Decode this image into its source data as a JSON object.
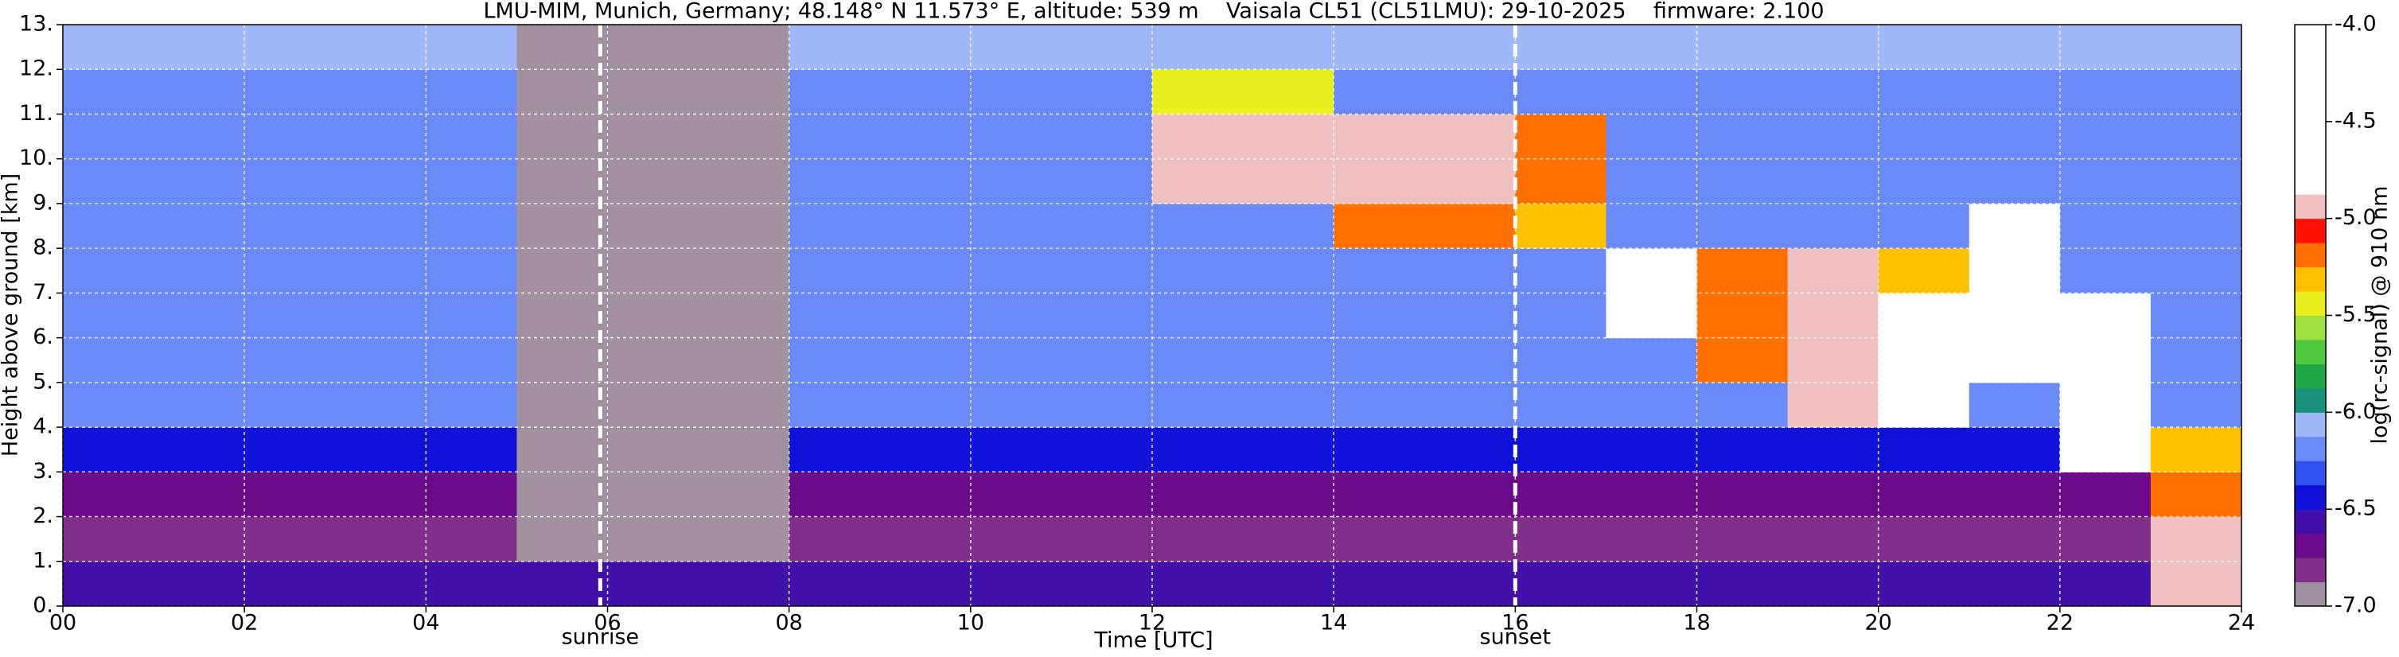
{
  "chart_data": {
    "type": "heatmap",
    "title": "LMU-MIM, Munich, Germany; 48.148° N 11.573° E, altitude: 539 m    Vaisala CL51 (CL51LMU): 29-10-2025    firmware: 2.100",
    "x_label": "Time [UTC]",
    "y_label": "Height above ground [km]",
    "colorbar_label": "log(rc-signal) @ 910 nm",
    "xlim": [
      0,
      24
    ],
    "ylim": [
      0,
      13
    ],
    "zlim": [
      -7,
      -4
    ],
    "xticks": [
      {
        "value": 0,
        "label": "00"
      },
      {
        "value": 2,
        "label": "02"
      },
      {
        "value": 4,
        "label": "04"
      },
      {
        "value": 6,
        "label": "06"
      },
      {
        "value": 8,
        "label": "08"
      },
      10,
      12,
      14,
      16,
      18,
      20,
      22,
      24
    ],
    "yticks": [
      {
        "value": 0,
        "label": "0."
      },
      {
        "value": 1,
        "label": "1."
      },
      {
        "value": 2,
        "label": "2."
      },
      {
        "value": 3,
        "label": "3."
      },
      {
        "value": 4,
        "label": "4."
      },
      {
        "value": 5,
        "label": "5."
      },
      {
        "value": 6,
        "label": "6."
      },
      {
        "value": 7,
        "label": "7."
      },
      {
        "value": 8,
        "label": "8."
      },
      {
        "value": 9,
        "label": "9."
      },
      {
        "value": 10,
        "label": "10."
      },
      {
        "value": 11,
        "label": "11."
      },
      {
        "value": 12,
        "label": "12."
      },
      {
        "value": 13,
        "label": "13."
      }
    ],
    "zticks": [
      {
        "value": -4,
        "label": "-4.0"
      },
      {
        "value": -4.5,
        "label": "-4.5"
      },
      {
        "value": -5,
        "label": "-5.0"
      },
      {
        "value": -5.5,
        "label": "-5.5"
      },
      {
        "value": -6,
        "label": "-6.0"
      },
      {
        "value": -6.5,
        "label": "-6.5"
      },
      {
        "value": -7,
        "label": "-7.0"
      }
    ],
    "grid": true,
    "colors": [
      "#a090a0",
      "#80308a",
      "#6a0a8a",
      "#4010a8",
      "#1010d8",
      "#3050f0",
      "#6a8af8",
      "#a0b8f8",
      "#18907a",
      "#20a848",
      "#50c840",
      "#a0e040",
      "#e8f020",
      "#ffc000",
      "#ff7000",
      "#ff1000",
      "#f0c0c0",
      "#ffffff",
      "#ffffff",
      "#ffffff",
      "#ffffff",
      "#ffffff",
      "#ffffff",
      "#ffffff"
    ],
    "annotations": [
      {
        "x": 5.92,
        "label": "sunrise"
      },
      {
        "x": 16.0,
        "label": "sunset"
      }
    ],
    "values": [
      [
        -6.6,
        -6.6,
        -6.6,
        -6.6,
        -6.6,
        -6.6,
        -6.6,
        -6.6,
        -6.6,
        -6.6,
        -6.6,
        -6.6,
        -6.6,
        -6.6,
        -6.6,
        -6.6,
        -6.6,
        -6.6,
        -6.6,
        -6.6,
        -6.6,
        -6.6,
        -6.6,
        -5.0
      ],
      [
        -6.8,
        -6.8,
        -6.8,
        -6.8,
        -6.8,
        -6.95,
        -6.95,
        -6.95,
        -6.8,
        -6.8,
        -6.8,
        -6.8,
        -6.8,
        -6.8,
        -6.8,
        -6.8,
        -6.8,
        -6.8,
        -6.8,
        -6.8,
        -6.8,
        -6.8,
        -6.8,
        -5.0
      ],
      [
        -6.7,
        -6.7,
        -6.7,
        -6.7,
        -6.7,
        -6.95,
        -6.95,
        -6.95,
        -6.7,
        -6.7,
        -6.7,
        -6.7,
        -6.7,
        -6.7,
        -6.7,
        -6.7,
        -6.7,
        -6.7,
        -6.7,
        -6.7,
        -6.7,
        -6.7,
        -6.7,
        -5.2
      ],
      [
        -6.5,
        -6.5,
        -6.5,
        -6.5,
        -6.5,
        -6.95,
        -6.95,
        -6.95,
        -6.5,
        -6.5,
        -6.5,
        -6.5,
        -6.5,
        -6.5,
        -6.5,
        -6.5,
        -6.5,
        -6.5,
        -6.5,
        -6.5,
        -6.5,
        -6.5,
        -4.6,
        -5.3
      ],
      [
        -6.2,
        -6.2,
        -6.2,
        -6.2,
        -6.2,
        -6.95,
        -6.95,
        -6.95,
        -6.2,
        -6.2,
        -6.2,
        -6.2,
        -6.2,
        -6.2,
        -6.2,
        -6.2,
        -6.2,
        -6.2,
        -6.2,
        -5.0,
        -4.5,
        -6.2,
        -4.6,
        -6.2
      ],
      [
        -6.2,
        -6.2,
        -6.2,
        -6.2,
        -6.2,
        -6.95,
        -6.95,
        -6.95,
        -6.2,
        -6.2,
        -6.2,
        -6.2,
        -6.2,
        -6.2,
        -6.2,
        -6.2,
        -6.2,
        -6.2,
        -5.2,
        -5.0,
        -4.5,
        -4.7,
        -4.6,
        -6.2
      ],
      [
        -6.2,
        -6.2,
        -6.2,
        -6.2,
        -6.2,
        -6.95,
        -6.95,
        -6.95,
        -6.2,
        -6.2,
        -6.2,
        -6.2,
        -6.2,
        -6.2,
        -6.2,
        -6.2,
        -6.2,
        -4.6,
        -5.2,
        -5.0,
        -4.5,
        -4.7,
        -4.6,
        -6.2
      ],
      [
        -6.2,
        -6.2,
        -6.2,
        -6.2,
        -6.2,
        -6.95,
        -6.95,
        -6.95,
        -6.2,
        -6.2,
        -6.2,
        -6.2,
        -6.2,
        -6.2,
        -6.2,
        -6.2,
        -6.2,
        -4.6,
        -5.2,
        -5.0,
        -5.3,
        -4.7,
        -6.2,
        -6.2
      ],
      [
        -6.2,
        -6.2,
        -6.2,
        -6.2,
        -6.2,
        -6.95,
        -6.95,
        -6.95,
        -6.2,
        -6.2,
        -6.2,
        -6.2,
        -6.2,
        -6.2,
        -5.2,
        -5.2,
        -5.3,
        -6.2,
        -6.2,
        -6.2,
        -6.2,
        -4.7,
        -6.2,
        -6.2
      ],
      [
        -6.2,
        -6.2,
        -6.2,
        -6.2,
        -6.2,
        -6.95,
        -6.95,
        -6.95,
        -6.2,
        -6.2,
        -6.2,
        -6.2,
        -5.0,
        -5.0,
        -5.0,
        -5.0,
        -5.2,
        -6.2,
        -6.2,
        -6.2,
        -6.2,
        -6.2,
        -6.2,
        -6.2
      ],
      [
        -6.2,
        -6.2,
        -6.2,
        -6.2,
        -6.2,
        -6.95,
        -6.95,
        -6.95,
        -6.2,
        -6.2,
        -6.2,
        -6.2,
        -5.0,
        -5.0,
        -5.0,
        -5.0,
        -5.2,
        -6.2,
        -6.2,
        -6.2,
        -6.2,
        -6.2,
        -6.2,
        -6.2
      ],
      [
        -6.2,
        -6.2,
        -6.2,
        -6.2,
        -6.2,
        -6.95,
        -6.95,
        -6.95,
        -6.2,
        -6.2,
        -6.2,
        -6.2,
        -5.4,
        -5.4,
        -6.2,
        -6.2,
        -6.2,
        -6.2,
        -6.2,
        -6.2,
        -6.2,
        -6.2,
        -6.2,
        -6.2
      ],
      [
        -6.1,
        -6.1,
        -6.1,
        -6.1,
        -6.1,
        -6.95,
        -6.95,
        -6.95,
        -6.1,
        -6.1,
        -6.1,
        -6.1,
        -6.1,
        -6.1,
        -6.1,
        -6.1,
        -6.1,
        -6.1,
        -6.1,
        -6.1,
        -6.1,
        -6.1,
        -6.1,
        -6.1
      ]
    ]
  }
}
